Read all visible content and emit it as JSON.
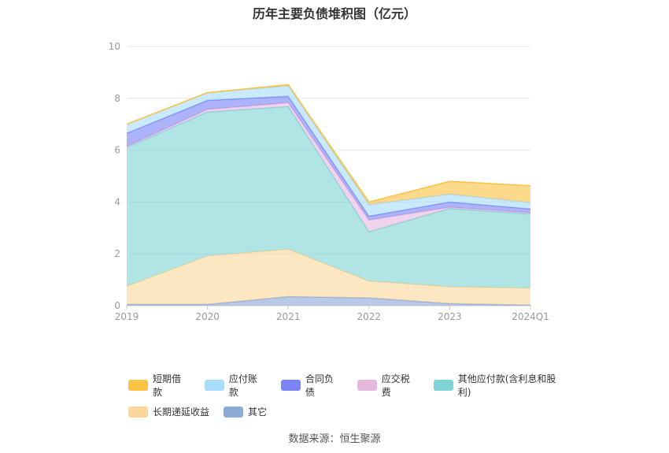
{
  "chart_data": {
    "type": "area",
    "stacked": true,
    "title": "历年主要负债堆积图（亿元）",
    "x": [
      "2019",
      "2020",
      "2021",
      "2022",
      "2023",
      "2024Q1"
    ],
    "ylim": [
      0,
      10
    ],
    "yticks": [
      "0",
      "2",
      "4",
      "6",
      "8",
      "10"
    ],
    "grid": true,
    "legend_position": "bottom",
    "series": [
      {
        "name": "其它",
        "color": "#8eaad8",
        "values": [
          0.05,
          0.05,
          0.35,
          0.3,
          0.08,
          0.02
        ]
      },
      {
        "name": "长期递延收益",
        "color": "#fcd79c",
        "values": [
          0.7,
          1.87,
          1.83,
          0.65,
          0.65,
          0.66
        ]
      },
      {
        "name": "其他应付款(含利息和股利)",
        "color": "#7fd4d5",
        "values": [
          5.35,
          5.55,
          5.5,
          1.9,
          3.02,
          2.85
        ]
      },
      {
        "name": "应交税费",
        "color": "#e5b9de",
        "values": [
          0.05,
          0.1,
          0.15,
          0.45,
          0.05,
          0.05
        ]
      },
      {
        "name": "合同负债",
        "color": "#7b84f5",
        "values": [
          0.5,
          0.35,
          0.25,
          0.15,
          0.2,
          0.15
        ]
      },
      {
        "name": "应付账款",
        "color": "#a8ddfa",
        "values": [
          0.35,
          0.3,
          0.4,
          0.45,
          0.3,
          0.25
        ]
      },
      {
        "name": "短期借款",
        "color": "#fbc243",
        "values": [
          0.0,
          0.0,
          0.05,
          0.1,
          0.5,
          0.65
        ]
      }
    ]
  },
  "legend_rows": [
    [
      {
        "label": "短期借款",
        "color": "#fbc243"
      },
      {
        "label": "应付账款",
        "color": "#a8ddfa"
      },
      {
        "label": "合同负债",
        "color": "#7b84f5"
      },
      {
        "label": "应交税费",
        "color": "#e5b9de"
      },
      {
        "label": "其他应付款(含利息和股利)",
        "color": "#7fd4d5"
      }
    ],
    [
      {
        "label": "长期递延收益",
        "color": "#fcd79c"
      },
      {
        "label": "其它",
        "color": "#8eaad8"
      }
    ]
  ],
  "source": "数据来源：恒生聚源"
}
